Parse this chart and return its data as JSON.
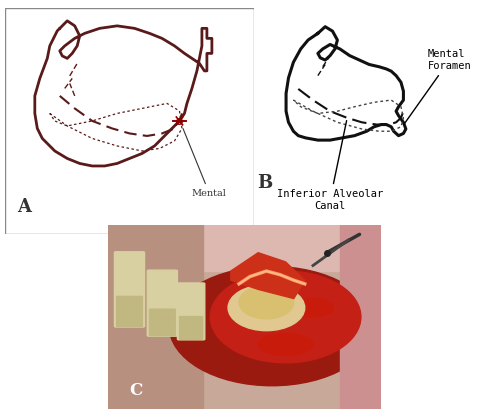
{
  "figure_bg": "#ffffff",
  "panel_A": {
    "label": "A",
    "bg_color": "#f0e0d0",
    "jaw_color": "#5a1a1a",
    "annotation_text": "Mental",
    "annotation_color": "#333333",
    "border_color": "#aaaaaa"
  },
  "panel_B": {
    "label": "B",
    "bg_color": "#ffffff",
    "jaw_color": "#111111",
    "label_mental_foramen": "Mental\nForamen",
    "label_inferior_alveolar": "Inferior Alveolar\nCanal"
  },
  "panel_C": {
    "label": "C",
    "bg_pink": "#d4a8a0",
    "bg_red": "#c03020",
    "tooth_color": "#e8e0b0",
    "gum_color": "#cc8880",
    "lip_color": "#e0b0b0",
    "bright_red": "#dd2010",
    "pale_tissue": "#e8c8b8",
    "dark_instrument": "#222222",
    "nerve_color": "#cc6644"
  }
}
